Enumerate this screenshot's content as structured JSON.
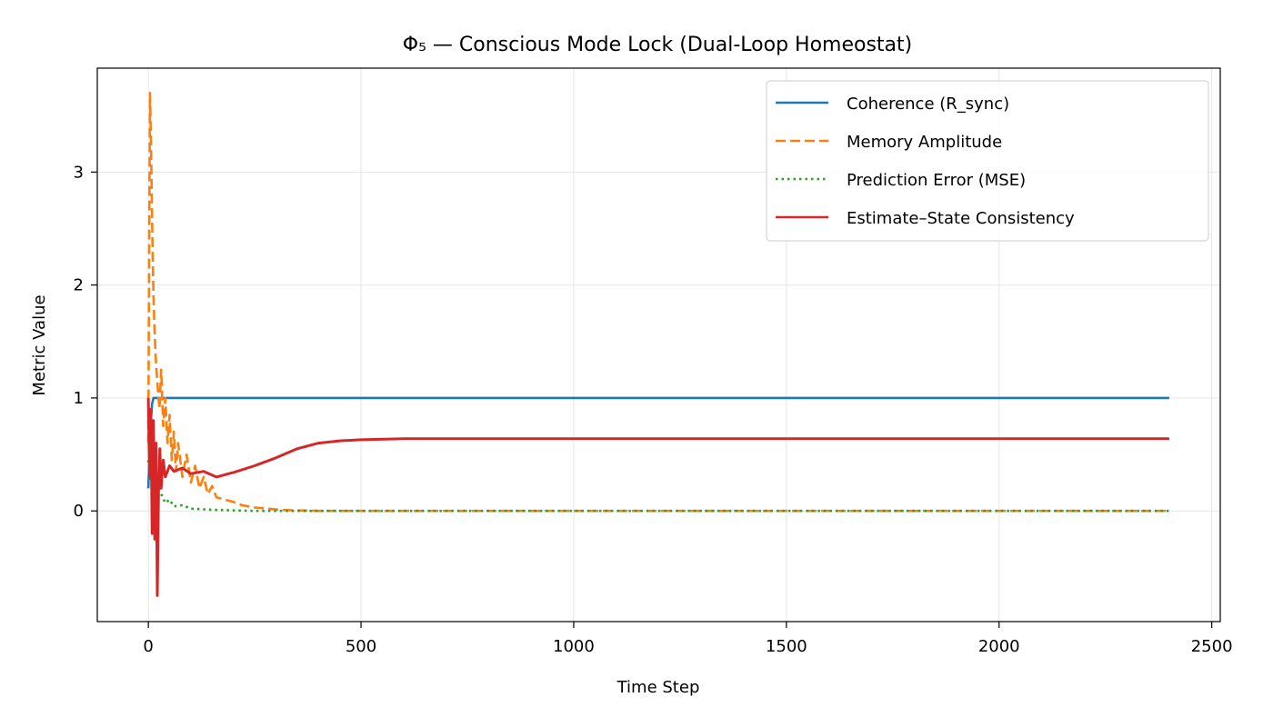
{
  "chart_data": {
    "type": "line",
    "title": "Φ₅ — Conscious Mode Lock (Dual-Loop Homeostat)",
    "xlabel": "Time Step",
    "ylabel": "Metric Value",
    "xlim": [
      -120,
      2520
    ],
    "ylim": [
      -0.98,
      3.92
    ],
    "xticks": [
      0,
      500,
      1000,
      1500,
      2000,
      2500
    ],
    "yticks": [
      0,
      1,
      2,
      3
    ],
    "grid": true,
    "legend_position": "top-right",
    "series": [
      {
        "name": "Coherence (R_sync)",
        "color": "#1f77b4",
        "style": "solid",
        "x": [
          0,
          3,
          6,
          9,
          12,
          15,
          20,
          30,
          2400
        ],
        "y": [
          0.2,
          0.5,
          0.8,
          0.95,
          1.0,
          1.0,
          1.0,
          1.0,
          1.0
        ]
      },
      {
        "name": "Memory Amplitude",
        "color": "#ff7f0e",
        "style": "dashed",
        "x": [
          0,
          2,
          4,
          6,
          8,
          10,
          12,
          15,
          18,
          22,
          26,
          30,
          35,
          40,
          45,
          50,
          55,
          60,
          65,
          70,
          80,
          90,
          100,
          110,
          120,
          130,
          140,
          150,
          160,
          180,
          200,
          220,
          250,
          280,
          310,
          340,
          380,
          400,
          2400
        ],
        "y": [
          0.6,
          2.5,
          3.7,
          3.3,
          2.8,
          2.3,
          1.9,
          1.55,
          1.3,
          1.1,
          0.9,
          1.25,
          0.75,
          1.0,
          0.6,
          0.85,
          0.45,
          0.7,
          0.35,
          0.6,
          0.3,
          0.5,
          0.25,
          0.4,
          0.2,
          0.3,
          0.15,
          0.22,
          0.12,
          0.1,
          0.08,
          0.05,
          0.03,
          0.02,
          0.01,
          0.005,
          0.003,
          0.0,
          0.0
        ]
      },
      {
        "name": "Prediction Error (MSE)",
        "color": "#2ca02c",
        "style": "dotted",
        "x": [
          0,
          5,
          10,
          15,
          20,
          30,
          40,
          50,
          60,
          80,
          100,
          150,
          200,
          250,
          2400
        ],
        "y": [
          0.45,
          0.3,
          0.15,
          0.2,
          0.1,
          0.15,
          0.07,
          0.1,
          0.04,
          0.05,
          0.02,
          0.01,
          0.005,
          0.0,
          0.0
        ]
      },
      {
        "name": "Estimate–State Consistency",
        "color": "#d62728",
        "style": "solid",
        "x": [
          0,
          3,
          6,
          9,
          12,
          15,
          18,
          21,
          24,
          27,
          30,
          35,
          40,
          50,
          60,
          80,
          100,
          130,
          160,
          200,
          250,
          300,
          350,
          400,
          450,
          500,
          600,
          700,
          800,
          1000,
          1200,
          1400,
          1600,
          1800,
          2000,
          2200,
          2400
        ],
        "y": [
          1.0,
          0.3,
          0.9,
          -0.2,
          0.8,
          -0.25,
          0.6,
          -0.75,
          0.2,
          0.55,
          0.2,
          0.45,
          0.3,
          0.4,
          0.35,
          0.38,
          0.33,
          0.35,
          0.3,
          0.34,
          0.4,
          0.47,
          0.55,
          0.6,
          0.62,
          0.63,
          0.64,
          0.64,
          0.64,
          0.64,
          0.64,
          0.64,
          0.64,
          0.64,
          0.64,
          0.64,
          0.64
        ]
      }
    ]
  }
}
